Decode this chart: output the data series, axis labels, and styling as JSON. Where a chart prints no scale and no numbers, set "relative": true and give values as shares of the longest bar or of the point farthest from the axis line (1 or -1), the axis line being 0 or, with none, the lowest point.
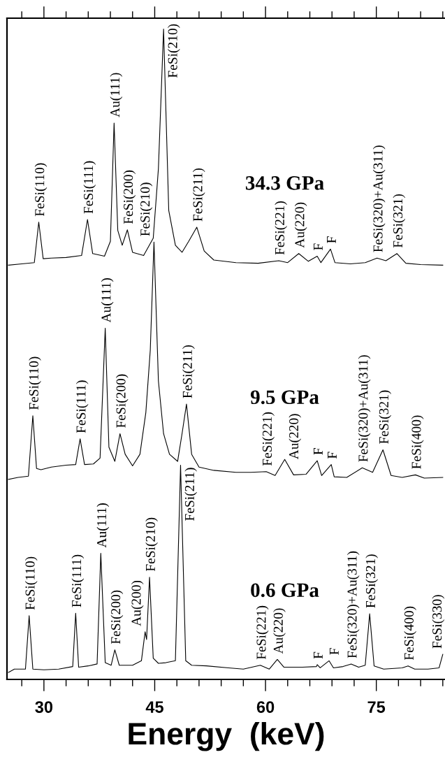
{
  "chart_data": {
    "type": "line",
    "relative": true,
    "xlabel": "Energy  (keV)",
    "tick_labels": "x",
    "grid": false,
    "legend": false,
    "marker": "none",
    "line_style": "solid",
    "xlim": [
      25,
      84.3
    ],
    "xticks": [
      {
        "value": 27,
        "label": null
      },
      30,
      {
        "value": 33,
        "label": null
      },
      {
        "value": 36,
        "label": null
      },
      {
        "value": 39,
        "label": null
      },
      {
        "value": 42,
        "label": null
      },
      45,
      {
        "value": 48,
        "label": null
      },
      {
        "value": 51,
        "label": null
      },
      {
        "value": 54,
        "label": null
      },
      {
        "value": 57,
        "label": null
      },
      60,
      {
        "value": 63,
        "label": null
      },
      {
        "value": 66,
        "label": null
      },
      {
        "value": 69,
        "label": null
      },
      {
        "value": 72,
        "label": null
      },
      75,
      {
        "value": 78,
        "label": null
      },
      {
        "value": 81,
        "label": null
      },
      {
        "value": 84,
        "label": null
      }
    ],
    "series": [
      {
        "name": "34.3 GPa",
        "color": "#000000",
        "x": [
          25.2,
          27,
          28.7,
          29.3,
          29.9,
          31,
          33,
          35.1,
          35.9,
          36.6,
          38.2,
          39.0,
          39.5,
          40.0,
          40.6,
          41.3,
          42.0,
          43.5,
          44.8,
          45.5,
          46.2,
          46.9,
          47.8,
          48.7,
          49.6,
          50.7,
          51.7,
          53,
          56,
          59,
          61.8,
          63,
          64.5,
          65.8,
          67.0,
          67.5,
          68.8,
          69.4,
          71.5,
          73.5,
          75.1,
          76.3,
          77.8,
          79,
          81,
          84
        ],
        "values": [
          0.633,
          0.635,
          0.637,
          0.7,
          0.643,
          0.644,
          0.645,
          0.648,
          0.704,
          0.651,
          0.647,
          0.67,
          0.854,
          0.687,
          0.664,
          0.688,
          0.653,
          0.648,
          0.675,
          0.783,
          1.0,
          0.718,
          0.664,
          0.653,
          0.67,
          0.692,
          0.655,
          0.641,
          0.637,
          0.636,
          0.64,
          0.637,
          0.651,
          0.639,
          0.647,
          0.637,
          0.658,
          0.637,
          0.635,
          0.637,
          0.644,
          0.64,
          0.651,
          0.636,
          0.634,
          0.633
        ]
      },
      {
        "name": "9.5 GPa",
        "color": "#000000",
        "x": [
          25.2,
          26.5,
          27.9,
          28.5,
          29.0,
          29.6,
          31,
          33,
          34.3,
          34.9,
          35.5,
          36.7,
          37.6,
          38.3,
          38.8,
          39.6,
          40.3,
          41.0,
          42,
          43,
          43.8,
          44.4,
          44.9,
          45.5,
          46.2,
          47,
          48.1,
          48.7,
          49.3,
          50.0,
          51,
          53,
          56,
          58,
          60.1,
          61.3,
          62.6,
          63.8,
          65.5,
          67.0,
          67.6,
          68.9,
          69.3,
          71,
          73.1,
          74.5,
          75.9,
          77,
          78.5,
          80.3,
          81.5,
          84
        ],
        "values": [
          0.3,
          0.303,
          0.305,
          0.399,
          0.317,
          0.315,
          0.319,
          0.322,
          0.323,
          0.363,
          0.323,
          0.324,
          0.333,
          0.535,
          0.35,
          0.328,
          0.371,
          0.339,
          0.321,
          0.339,
          0.404,
          0.501,
          0.669,
          0.453,
          0.371,
          0.339,
          0.328,
          0.371,
          0.417,
          0.339,
          0.319,
          0.314,
          0.311,
          0.311,
          0.312,
          0.306,
          0.331,
          0.307,
          0.308,
          0.329,
          0.306,
          0.323,
          0.304,
          0.303,
          0.318,
          0.311,
          0.346,
          0.306,
          0.303,
          0.307,
          0.302,
          0.303
        ]
      },
      {
        "name": "0.6 GPa",
        "color": "#000000",
        "x": [
          25.2,
          26,
          27.5,
          28.0,
          28.5,
          30,
          32,
          33.9,
          34.3,
          34.7,
          36,
          37.2,
          37.7,
          38.3,
          39.1,
          39.6,
          40.2,
          42,
          43.2,
          43.7,
          43.9,
          44.3,
          44.8,
          45.5,
          46.5,
          47.8,
          48.5,
          49.2,
          50,
          52,
          55,
          57,
          59.3,
          60.5,
          61.6,
          62.5,
          65,
          66.9,
          67.0,
          67.4,
          68.6,
          69.2,
          70.5,
          71.6,
          72.6,
          73.5,
          74.1,
          74.7,
          76,
          78.5,
          79.3,
          80.2,
          82,
          83.5,
          84
        ],
        "values": [
          0.0,
          0.005,
          0.005,
          0.088,
          0.005,
          0.004,
          0.005,
          0.009,
          0.092,
          0.008,
          0.01,
          0.013,
          0.185,
          0.015,
          0.011,
          0.035,
          0.011,
          0.011,
          0.018,
          0.063,
          0.051,
          0.148,
          0.022,
          0.014,
          0.015,
          0.018,
          0.322,
          0.018,
          0.011,
          0.01,
          0.007,
          0.005,
          0.011,
          0.005,
          0.02,
          0.008,
          0.008,
          0.009,
          0.012,
          0.007,
          0.018,
          0.007,
          0.009,
          0.013,
          0.008,
          0.011,
          0.091,
          0.01,
          0.005,
          0.007,
          0.01,
          0.005,
          0.005,
          0.007,
          0.028
        ]
      }
    ],
    "annotations": [
      {
        "text": "FeSi(110)",
        "x": 29.3,
        "y": 0.7
      },
      {
        "text": "FeSi(111)",
        "x": 35.9,
        "y": 0.704
      },
      {
        "text": "Au(111)",
        "x": 39.5,
        "y": 0.854
      },
      {
        "text": "FeSi(200)",
        "x": 41.3,
        "y": 0.688
      },
      {
        "text": "FeSi(210)",
        "x": 46.2,
        "y": 1.0
      },
      {
        "text": "FeSi(211)",
        "x": 50.7,
        "y": 0.692
      },
      {
        "text": "FeSi(221)",
        "x": 61.8,
        "y": 0.64
      },
      {
        "text": "Au(220)",
        "x": 64.5,
        "y": 0.651
      },
      {
        "text": "F",
        "x": 67.0,
        "y": 0.647
      },
      {
        "text": "F",
        "x": 68.8,
        "y": 0.658
      },
      {
        "text": "FeSi(320)+Au(311)",
        "x": 75.1,
        "y": 0.644
      },
      {
        "text": "FeSi(321)",
        "x": 77.8,
        "y": 0.651
      },
      {
        "text": "FeSi(110)",
        "x": 28.5,
        "y": 0.399
      },
      {
        "text": "FeSi(111)",
        "x": 34.9,
        "y": 0.363
      },
      {
        "text": "Au(111)",
        "x": 38.3,
        "y": 0.535
      },
      {
        "text": "FeSi(200)",
        "x": 40.3,
        "y": 0.371
      },
      {
        "text": "FeSi(210)",
        "x": 44.9,
        "y": 0.669
      },
      {
        "text": "FeSi(211)",
        "x": 49.3,
        "y": 0.417
      },
      {
        "text": "FeSi(221)",
        "x": 60.1,
        "y": 0.312
      },
      {
        "text": "Au(220)",
        "x": 62.6,
        "y": 0.331
      },
      {
        "text": "F",
        "x": 67.0,
        "y": 0.329
      },
      {
        "text": "F",
        "x": 68.9,
        "y": 0.323
      },
      {
        "text": "FeSi(320)+Au(311)",
        "x": 73.1,
        "y": 0.318
      },
      {
        "text": "FeSi(321)",
        "x": 75.9,
        "y": 0.346
      },
      {
        "text": "FeSi(400)",
        "x": 80.3,
        "y": 0.307
      },
      {
        "text": "FeSi(110)",
        "x": 28.0,
        "y": 0.088
      },
      {
        "text": "FeSi(111)",
        "x": 34.3,
        "y": 0.092
      },
      {
        "text": "Au(111)",
        "x": 37.7,
        "y": 0.185
      },
      {
        "text": "FeSi(200)",
        "x": 39.6,
        "y": 0.035
      },
      {
        "text": "Au(200)",
        "x": 43.7,
        "y": 0.063
      },
      {
        "text": "FeSi(210)",
        "x": 44.3,
        "y": 0.148
      },
      {
        "text": "FeSi(211)",
        "x": 48.5,
        "y": 0.322
      },
      {
        "text": "FeSi(221)",
        "x": 59.3,
        "y": 0.011
      },
      {
        "text": "Au(220)",
        "x": 61.6,
        "y": 0.02
      },
      {
        "text": "F",
        "x": 67.0,
        "y": 0.012
      },
      {
        "text": "F",
        "x": 68.6,
        "y": 0.018
      },
      {
        "text": "FeSi(320)+Au(311)",
        "x": 71.6,
        "y": 0.013
      },
      {
        "text": "FeSi(321)",
        "x": 74.1,
        "y": 0.091
      },
      {
        "text": "FeSi(400)",
        "x": 79.3,
        "y": 0.01
      },
      {
        "text": "FeSi(330)",
        "x": 84,
        "y": 0.028
      }
    ]
  }
}
